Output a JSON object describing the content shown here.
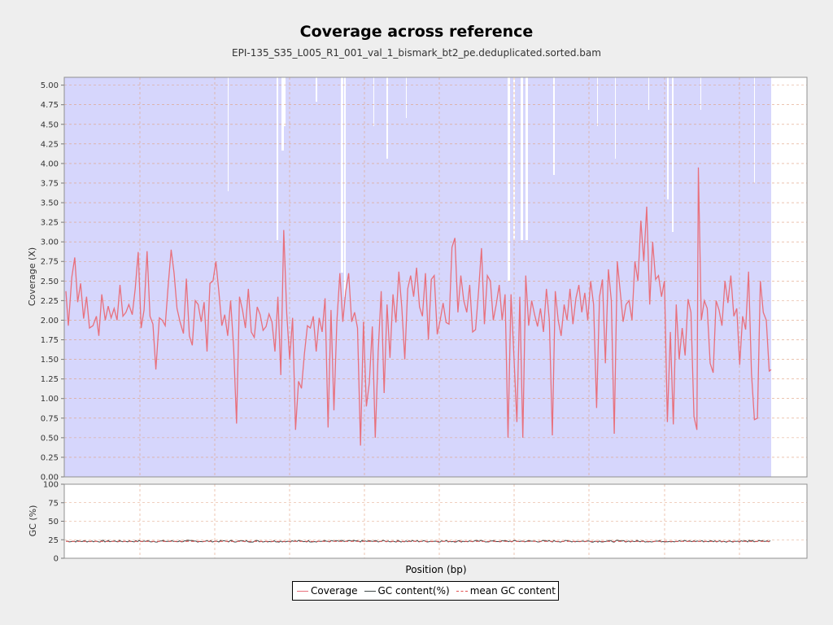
{
  "title": "Coverage across reference",
  "subtitle": "EPI-135_S35_L005_R1_001_val_1_bismark_bt2_pe.deduplicated.sorted.bam",
  "colors": {
    "coverage": "#e8707c",
    "gc": "#404848",
    "mean_gc": "#e05050",
    "band": "#d6d6fc",
    "gap": "#ffffff",
    "grid": "#e0a080"
  },
  "chart_data": [
    {
      "type": "line",
      "title": "Coverage across reference",
      "subtitle": "EPI-135_S35_L005_R1_001_val_1_bismark_bt2_pe.deduplicated.sorted.bam",
      "ylabel": "Coverage (X)",
      "xlabel": "",
      "ylim": [
        0,
        5.1
      ],
      "yticks": [
        "0.00",
        "0.25",
        "0.50",
        "0.75",
        "1.00",
        "1.25",
        "1.50",
        "1.75",
        "2.00",
        "2.25",
        "2.50",
        "2.75",
        "3.00",
        "3.25",
        "3.50",
        "3.75",
        "4.00",
        "4.25",
        "4.50",
        "4.75",
        "5.00"
      ],
      "grid": true,
      "series": [
        {
          "name": "Coverage",
          "points": [
            [
              0,
              2.37
            ],
            [
              0.5,
              1.93
            ],
            [
              1.2,
              2.55
            ],
            [
              1.8,
              2.8
            ],
            [
              2.4,
              2.23
            ],
            [
              3,
              2.47
            ],
            [
              3.6,
              2.02
            ],
            [
              4.2,
              2.3
            ],
            [
              4.8,
              1.9
            ],
            [
              5.5,
              1.93
            ],
            [
              6.2,
              2.05
            ],
            [
              6.7,
              1.8
            ],
            [
              7.3,
              2.33
            ],
            [
              8,
              2.0
            ],
            [
              8.6,
              2.18
            ],
            [
              9.2,
              2.03
            ],
            [
              9.8,
              2.15
            ],
            [
              10.4,
              2.0
            ],
            [
              11,
              2.45
            ],
            [
              11.6,
              2.05
            ],
            [
              12.2,
              2.1
            ],
            [
              12.8,
              2.2
            ],
            [
              13.5,
              2.07
            ],
            [
              14.1,
              2.4
            ],
            [
              14.7,
              2.87
            ],
            [
              15.3,
              1.9
            ],
            [
              15.9,
              2.13
            ],
            [
              16.5,
              2.88
            ],
            [
              17.1,
              2.05
            ],
            [
              17.7,
              1.95
            ],
            [
              18.3,
              1.37
            ],
            [
              19,
              2.03
            ],
            [
              19.6,
              2.0
            ],
            [
              20.2,
              1.93
            ],
            [
              20.8,
              2.45
            ],
            [
              21.4,
              2.9
            ],
            [
              22,
              2.6
            ],
            [
              22.6,
              2.15
            ],
            [
              23.2,
              1.98
            ],
            [
              23.9,
              1.83
            ],
            [
              24.5,
              2.53
            ],
            [
              25.1,
              1.8
            ],
            [
              25.7,
              1.68
            ],
            [
              26.3,
              2.25
            ],
            [
              26.9,
              2.2
            ],
            [
              27.5,
              1.98
            ],
            [
              28.1,
              2.23
            ],
            [
              28.7,
              1.6
            ],
            [
              29.3,
              2.47
            ],
            [
              29.9,
              2.5
            ],
            [
              30.5,
              2.75
            ],
            [
              31.1,
              2.37
            ],
            [
              31.7,
              1.93
            ],
            [
              32.3,
              2.07
            ],
            [
              32.9,
              1.8
            ],
            [
              33.5,
              2.25
            ],
            [
              34.1,
              1.65
            ],
            [
              34.7,
              0.68
            ],
            [
              35.3,
              2.3
            ],
            [
              35.9,
              2.13
            ],
            [
              36.5,
              1.9
            ],
            [
              37.1,
              2.4
            ],
            [
              37.7,
              1.85
            ],
            [
              38.3,
              1.78
            ],
            [
              38.9,
              2.17
            ],
            [
              39.5,
              2.07
            ],
            [
              40.1,
              1.87
            ],
            [
              40.7,
              1.92
            ],
            [
              41.3,
              2.08
            ],
            [
              41.9,
              1.98
            ],
            [
              42.5,
              1.6
            ],
            [
              43.1,
              2.3
            ],
            [
              43.7,
              1.3
            ],
            [
              44.3,
              3.15
            ],
            [
              44.9,
              2.08
            ],
            [
              45.5,
              1.5
            ],
            [
              46.1,
              2.03
            ],
            [
              46.7,
              0.6
            ],
            [
              47.3,
              1.22
            ],
            [
              47.9,
              1.13
            ],
            [
              48.5,
              1.57
            ],
            [
              49.1,
              1.93
            ],
            [
              49.7,
              1.9
            ],
            [
              50.3,
              2.05
            ],
            [
              50.9,
              1.6
            ],
            [
              51.5,
              2.03
            ],
            [
              52.1,
              1.85
            ],
            [
              52.7,
              2.28
            ],
            [
              53.3,
              0.63
            ],
            [
              53.9,
              2.13
            ],
            [
              54.5,
              0.85
            ],
            [
              55.1,
              1.98
            ],
            [
              55.7,
              2.6
            ],
            [
              56.3,
              1.98
            ],
            [
              56.9,
              2.37
            ],
            [
              57.5,
              2.6
            ],
            [
              58.1,
              1.98
            ],
            [
              58.7,
              2.1
            ],
            [
              59.3,
              1.9
            ],
            [
              59.9,
              0.4
            ],
            [
              60.5,
              1.98
            ],
            [
              61.1,
              0.9
            ],
            [
              61.7,
              1.2
            ],
            [
              62.3,
              1.92
            ],
            [
              62.9,
              0.5
            ],
            [
              63.5,
              1.6
            ],
            [
              64.1,
              2.37
            ],
            [
              64.7,
              1.07
            ],
            [
              65.3,
              2.2
            ],
            [
              65.9,
              1.52
            ],
            [
              66.5,
              2.33
            ],
            [
              67.1,
              1.97
            ],
            [
              67.7,
              2.62
            ],
            [
              68.3,
              2.17
            ],
            [
              68.9,
              1.5
            ],
            [
              69.5,
              2.4
            ],
            [
              70.1,
              2.57
            ],
            [
              70.7,
              2.3
            ],
            [
              71.3,
              2.67
            ],
            [
              71.9,
              2.17
            ],
            [
              72.5,
              2.05
            ],
            [
              73.1,
              2.6
            ],
            [
              73.7,
              1.75
            ],
            [
              74.3,
              2.52
            ],
            [
              74.9,
              2.57
            ],
            [
              75.5,
              1.82
            ],
            [
              76.1,
              2.0
            ],
            [
              76.7,
              2.22
            ],
            [
              77.3,
              1.97
            ],
            [
              77.9,
              1.95
            ],
            [
              78.5,
              2.93
            ],
            [
              79.1,
              3.05
            ],
            [
              79.7,
              2.1
            ],
            [
              80.3,
              2.57
            ],
            [
              80.9,
              2.25
            ],
            [
              81.5,
              2.1
            ],
            [
              82.1,
              2.45
            ],
            [
              82.7,
              1.85
            ],
            [
              83.3,
              1.88
            ],
            [
              83.9,
              2.37
            ],
            [
              84.5,
              2.92
            ],
            [
              85.1,
              1.95
            ],
            [
              85.7,
              2.57
            ],
            [
              86.3,
              2.5
            ],
            [
              86.9,
              2.0
            ],
            [
              87.5,
              2.2
            ],
            [
              88.1,
              2.45
            ],
            [
              88.7,
              2.0
            ],
            [
              89.3,
              2.33
            ],
            [
              89.9,
              0.5
            ],
            [
              90.5,
              2.33
            ],
            [
              91.1,
              1.53
            ],
            [
              91.7,
              0.7
            ],
            [
              92.3,
              2.3
            ],
            [
              92.9,
              0.5
            ],
            [
              93.5,
              2.57
            ],
            [
              94.1,
              1.93
            ],
            [
              94.7,
              2.25
            ],
            [
              95.3,
              2.07
            ],
            [
              95.9,
              1.92
            ],
            [
              96.5,
              2.15
            ],
            [
              97.1,
              1.85
            ],
            [
              97.7,
              2.4
            ],
            [
              98.3,
              2.0
            ],
            [
              98.9,
              0.53
            ],
            [
              99.5,
              2.37
            ],
            [
              100.1,
              2.0
            ],
            [
              100.7,
              1.8
            ],
            [
              101.3,
              2.2
            ],
            [
              101.9,
              2.0
            ],
            [
              102.5,
              2.4
            ],
            [
              103.1,
              1.95
            ],
            [
              103.7,
              2.28
            ],
            [
              104.3,
              2.45
            ],
            [
              104.9,
              2.1
            ],
            [
              105.5,
              2.35
            ],
            [
              106.1,
              2.0
            ],
            [
              106.7,
              2.5
            ],
            [
              107.3,
              2.2
            ],
            [
              107.9,
              0.88
            ],
            [
              108.5,
              2.3
            ],
            [
              109.1,
              2.52
            ],
            [
              109.7,
              1.45
            ],
            [
              110.3,
              2.65
            ],
            [
              110.9,
              2.25
            ],
            [
              111.5,
              0.55
            ],
            [
              112.1,
              2.75
            ],
            [
              112.7,
              2.37
            ],
            [
              113.3,
              1.98
            ],
            [
              113.9,
              2.2
            ],
            [
              114.5,
              2.25
            ],
            [
              115.1,
              2.0
            ],
            [
              115.7,
              2.75
            ],
            [
              116.3,
              2.5
            ],
            [
              116.9,
              3.27
            ],
            [
              117.5,
              2.75
            ],
            [
              118.1,
              3.45
            ],
            [
              118.7,
              2.2
            ],
            [
              119.3,
              3.0
            ],
            [
              119.9,
              2.52
            ],
            [
              120.5,
              2.57
            ],
            [
              121.1,
              2.3
            ],
            [
              121.7,
              2.5
            ],
            [
              122.3,
              0.7
            ],
            [
              122.9,
              1.85
            ],
            [
              123.5,
              0.67
            ],
            [
              124.1,
              2.2
            ],
            [
              124.7,
              1.5
            ],
            [
              125.3,
              1.9
            ],
            [
              125.9,
              1.55
            ],
            [
              126.5,
              2.27
            ],
            [
              127.1,
              2.1
            ],
            [
              127.7,
              0.77
            ],
            [
              128.3,
              0.6
            ],
            [
              128.6,
              3.95
            ],
            [
              129.2,
              2.0
            ],
            [
              129.8,
              2.25
            ],
            [
              130.4,
              2.15
            ],
            [
              131,
              1.45
            ],
            [
              131.6,
              1.33
            ],
            [
              132.2,
              2.25
            ],
            [
              132.8,
              2.13
            ],
            [
              133.4,
              1.93
            ],
            [
              134,
              2.5
            ],
            [
              134.6,
              2.22
            ],
            [
              135.2,
              2.57
            ],
            [
              135.8,
              2.05
            ],
            [
              136.4,
              2.15
            ],
            [
              137,
              1.43
            ],
            [
              137.6,
              2.05
            ],
            [
              138.2,
              1.88
            ],
            [
              138.8,
              2.62
            ],
            [
              139.4,
              1.32
            ],
            [
              140,
              0.73
            ],
            [
              140.6,
              0.75
            ],
            [
              141.2,
              2.5
            ],
            [
              141.8,
              2.1
            ],
            [
              142.4,
              2.0
            ],
            [
              143,
              1.35
            ],
            [
              143.4,
              1.37
            ]
          ]
        }
      ]
    },
    {
      "type": "line",
      "ylabel": "GC (%)",
      "xlabel": "Position (bp)",
      "ylim": [
        0,
        100
      ],
      "yticks": [
        "0",
        "25",
        "50",
        "75",
        "100"
      ],
      "grid": true,
      "series": [
        {
          "name": "GC content(%)",
          "mean": 23,
          "jitter": 1.2
        },
        {
          "name": "mean GC content",
          "value": 22.8
        }
      ]
    }
  ],
  "legend": [
    {
      "label": "Coverage",
      "style": "solid",
      "color": "#e8707c"
    },
    {
      "label": "GC content(%)",
      "style": "solid",
      "color": "#404848"
    },
    {
      "label": "mean GC content",
      "style": "dashed",
      "color": "#e05050"
    }
  ]
}
